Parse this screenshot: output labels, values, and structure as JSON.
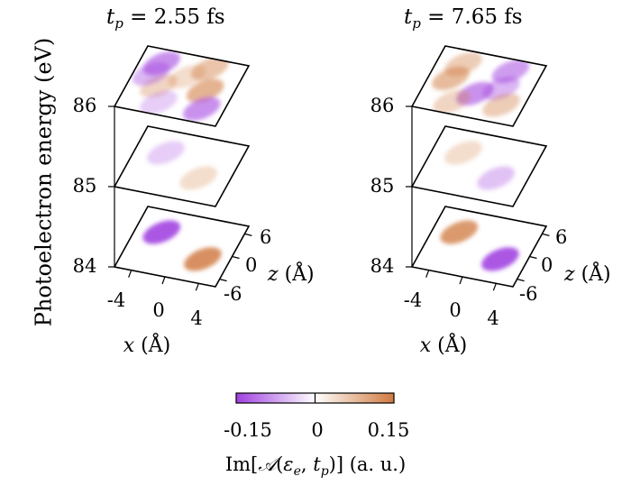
{
  "figure": {
    "panels": [
      {
        "title": "t_p = 2.55 fs",
        "title_math": "t",
        "title_sub": "p",
        "title_rest": " = 2.55 fs"
      },
      {
        "title": "t_p = 7.65 fs",
        "title_math": "t",
        "title_sub": "p",
        "title_rest": " = 7.65 fs"
      }
    ],
    "y_axis_label": "Photoelectron energy (eV)",
    "energy_ticks": [
      "86",
      "85",
      "84"
    ],
    "x_axis_label": "x (Å)",
    "x_ticks": [
      "-4",
      "0",
      "4"
    ],
    "z_axis_label": "z (Å)",
    "z_ticks": [
      "6",
      "0",
      "-6"
    ],
    "colorbar": {
      "min_label": "-0.15",
      "mid_label": "0",
      "max_label": "0.15",
      "label": "Im[𝒜(εe, tp)] (a. u.)",
      "label_prefix": "Im[",
      "label_script_A": "𝒜",
      "label_open": "(",
      "label_eps": "ε",
      "label_eps_sub": "e",
      "label_comma": ", ",
      "label_t": "t",
      "label_t_sub": "p",
      "label_close": ")] (a. u.)",
      "neg_color": "#a040e0",
      "pos_color": "#d07a40"
    }
  },
  "chart_data": {
    "type": "heatmap",
    "ylabel": "Photoelectron energy (eV)",
    "xlabel": "x (Å)",
    "zlabel": "z (Å)",
    "energy_levels_eV": [
      84,
      85,
      86
    ],
    "x_range": [
      -6,
      6
    ],
    "z_range": [
      -8,
      8
    ],
    "colorbar_range": [
      -0.15,
      0.15
    ],
    "panels": [
      {
        "title": "t_p = 2.55 fs",
        "layers": [
          {
            "energy": 86,
            "blobs": [
              {
                "x": -3.5,
                "z": 4.5,
                "amp": -0.09
              },
              {
                "x": 2.0,
                "z": 5.5,
                "amp": 0.07
              },
              {
                "x": -2.5,
                "z": -1.0,
                "amp": 0.05
              },
              {
                "x": 2.8,
                "z": 0.0,
                "amp": 0.09
              },
              {
                "x": -4.0,
                "z": 1.5,
                "amp": -0.06
              },
              {
                "x": 3.5,
                "z": -4.5,
                "amp": -0.09
              },
              {
                "x": -1.5,
                "z": -5.0,
                "amp": -0.04
              },
              {
                "x": 0.0,
                "z": 2.5,
                "amp": 0.04
              }
            ]
          },
          {
            "energy": 85,
            "blobs": [
              {
                "x": -2.5,
                "z": 2.5,
                "amp": -0.04
              },
              {
                "x": 2.5,
                "z": -2.0,
                "amp": 0.04
              }
            ]
          },
          {
            "energy": 84,
            "blobs": [
              {
                "x": -3.0,
                "z": 2.5,
                "amp": -0.14
              },
              {
                "x": 3.0,
                "z": -2.0,
                "amp": 0.13
              }
            ]
          }
        ]
      },
      {
        "title": "t_p = 7.65 fs",
        "layers": [
          {
            "energy": 86,
            "blobs": [
              {
                "x": -3.0,
                "z": 4.5,
                "amp": 0.06
              },
              {
                "x": 2.5,
                "z": 5.0,
                "amp": -0.08
              },
              {
                "x": -3.5,
                "z": 0.5,
                "amp": 0.08
              },
              {
                "x": 2.5,
                "z": 0.5,
                "amp": -0.06
              },
              {
                "x": 0.0,
                "z": -2.0,
                "amp": -0.09
              },
              {
                "x": 3.5,
                "z": -3.5,
                "amp": 0.06
              },
              {
                "x": -2.0,
                "z": -5.0,
                "amp": 0.05
              }
            ]
          },
          {
            "energy": 85,
            "blobs": [
              {
                "x": -2.5,
                "z": 2.5,
                "amp": 0.04
              },
              {
                "x": 2.5,
                "z": -2.0,
                "amp": -0.05
              }
            ]
          },
          {
            "energy": 84,
            "blobs": [
              {
                "x": -3.0,
                "z": 2.5,
                "amp": 0.12
              },
              {
                "x": 3.0,
                "z": -2.0,
                "amp": -0.14
              }
            ]
          }
        ]
      }
    ]
  }
}
